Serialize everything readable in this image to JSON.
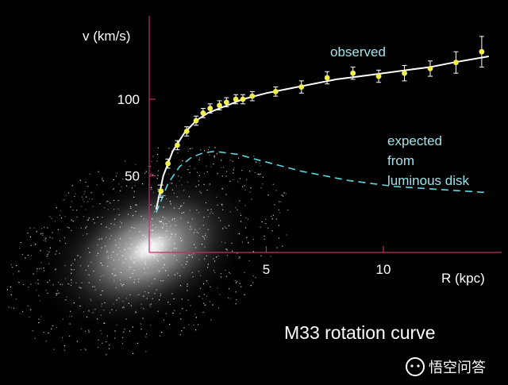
{
  "chart_data": {
    "type": "scatter",
    "title": "M33 rotation curve",
    "xlabel": "R (kpc)",
    "ylabel": "v (km/s)",
    "xlim": [
      0,
      15
    ],
    "ylim": [
      0,
      145
    ],
    "x_ticks": [
      "5",
      "10"
    ],
    "x_tick_values": [
      5,
      10
    ],
    "y_ticks": [
      "50",
      "100"
    ],
    "y_tick_values": [
      50,
      100
    ],
    "grid": false,
    "series": [
      {
        "name": "observed",
        "kind": "points-with-errorbars",
        "color": "#f2f04a",
        "x": [
          0.5,
          0.8,
          1.2,
          1.6,
          2.0,
          2.3,
          2.6,
          3.0,
          3.3,
          3.7,
          4.0,
          4.4,
          5.4,
          6.5,
          7.6,
          8.7,
          9.8,
          10.9,
          12.0,
          13.1,
          14.2
        ],
        "y": [
          40,
          58,
          70,
          79,
          86,
          91,
          94,
          96,
          98,
          100,
          100,
          102,
          105,
          108,
          114,
          117,
          115,
          117,
          120,
          124,
          131
        ],
        "err": [
          4,
          3,
          3,
          3,
          3,
          3,
          3,
          3,
          3,
          3,
          3,
          3,
          3,
          4,
          4,
          4,
          4,
          5,
          5,
          7,
          10
        ]
      },
      {
        "name": "observed-fit",
        "kind": "solid-line",
        "color": "#ffffff",
        "x": [
          0.3,
          0.6,
          1.0,
          1.5,
          2.0,
          2.5,
          3.0,
          3.5,
          4.0,
          5.0,
          6.0,
          7.0,
          8.0,
          9.0,
          10.0,
          11.0,
          12.0,
          13.0,
          14.5
        ],
        "y": [
          28,
          50,
          66,
          78,
          86,
          91,
          94,
          97,
          100,
          104,
          107,
          110,
          113,
          115,
          117,
          119,
          121,
          124,
          128
        ]
      },
      {
        "name": "expected from luminous disk",
        "kind": "dashed-line",
        "color": "#5fd6e0",
        "x": [
          0.3,
          0.8,
          1.3,
          1.8,
          2.3,
          2.8,
          3.3,
          3.8,
          4.5,
          5.5,
          6.5,
          7.5,
          8.5,
          9.5,
          10.5,
          11.5,
          12.5,
          13.5,
          14.5
        ],
        "y": [
          26,
          45,
          56,
          62,
          65,
          66,
          65,
          64,
          61,
          57,
          53,
          50,
          47,
          45,
          43,
          42,
          41,
          40,
          39
        ]
      }
    ],
    "annotations": [
      {
        "id": "observed",
        "lines": [
          "observed"
        ]
      },
      {
        "id": "expected",
        "lines": [
          "expected",
          "from",
          "luminous disk"
        ]
      }
    ]
  },
  "colors": {
    "background": "#000000",
    "axis": "#c0306a",
    "observed_points": "#f2f04a",
    "observed_line": "#ffffff",
    "expected_line": "#5fd6e0",
    "annotation_text": "#9fe3ea",
    "label_text": "#ffffff"
  },
  "watermark": {
    "icon": "speech-bubble-icon",
    "text": "悟空问答"
  }
}
